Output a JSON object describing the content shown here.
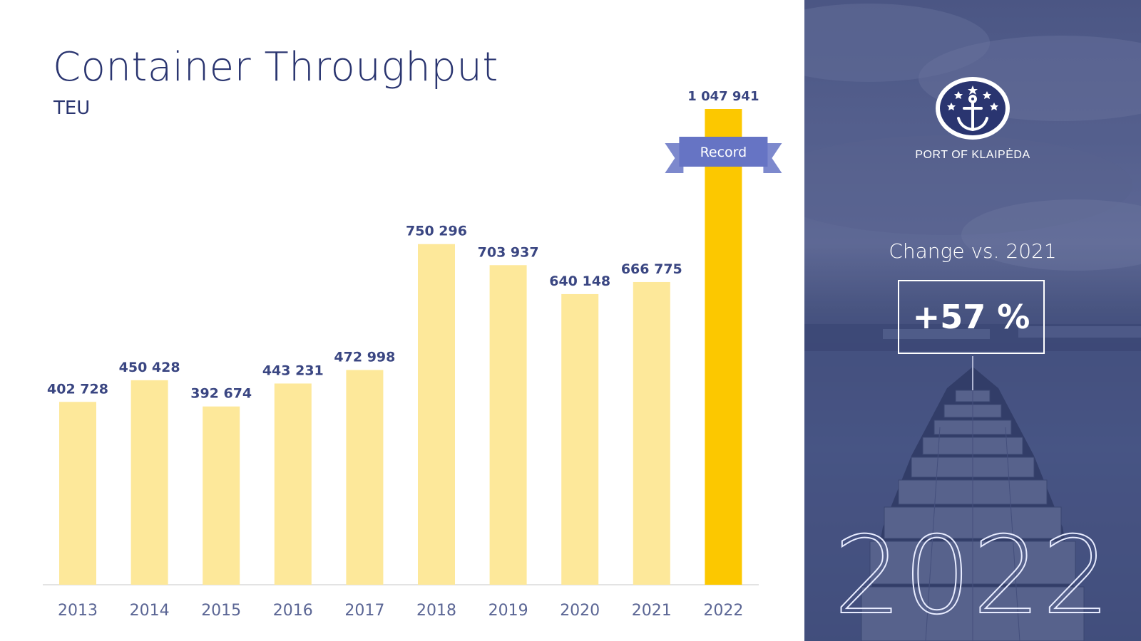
{
  "title": "Container Throughput",
  "subtitle": "TEU",
  "chart_data": {
    "type": "bar",
    "categories": [
      "2013",
      "2014",
      "2015",
      "2016",
      "2017",
      "2018",
      "2019",
      "2020",
      "2021",
      "2022"
    ],
    "values": [
      402728,
      450428,
      392674,
      443231,
      472998,
      750296,
      703937,
      640148,
      666775,
      1047941
    ],
    "value_labels": [
      "402 728",
      "450 428",
      "392 674",
      "443 231",
      "472 998",
      "750 296",
      "703 937",
      "640 148",
      "666 775",
      "1 047 941"
    ],
    "highlight_index": 9,
    "ylim": [
      0,
      1047941
    ],
    "grid": false,
    "legend": "none",
    "colors": {
      "bar": "#fde89a",
      "highlight": "#fcc800",
      "label": "#3a4682",
      "tick": "#5a6594",
      "axis": "#e3e3e3",
      "ribbon": "#6674c4"
    },
    "annotation": {
      "text": "Record",
      "index": 9
    }
  },
  "side_panel": {
    "logo_caption": "PORT OF KLAIPĖDA",
    "change_label": "Change vs. 2021",
    "change_value": "+57 %",
    "big_year": "2022"
  }
}
